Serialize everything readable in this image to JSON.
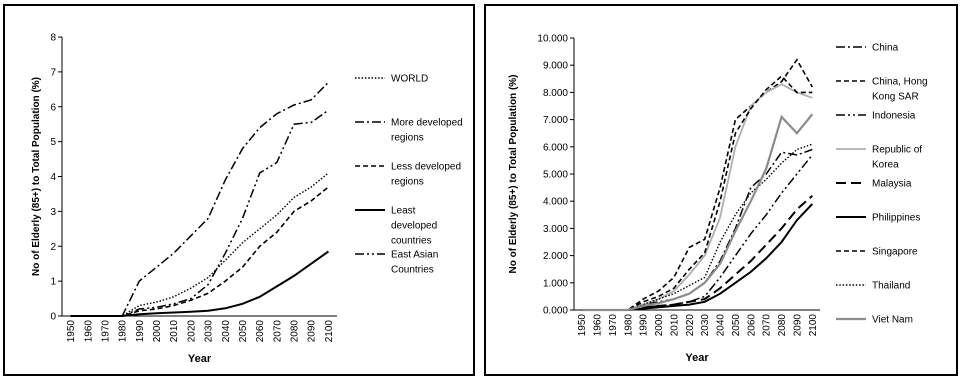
{
  "chart_data": [
    {
      "type": "line",
      "xlabel": "Year",
      "ylabel": "No of Elderly (85+) to Total Population (%)",
      "x": [
        1950,
        1960,
        1970,
        1980,
        1990,
        2000,
        2010,
        2020,
        2030,
        2040,
        2050,
        2060,
        2070,
        2080,
        2090,
        2100
      ],
      "ylim": [
        0,
        8
      ],
      "yticks": [
        "0",
        "1",
        "2",
        "3",
        "4",
        "5",
        "6",
        "7",
        "8"
      ],
      "legend_position": "right",
      "series": [
        {
          "name": "WORLD",
          "dash": "dotted",
          "values": [
            0,
            0,
            0,
            0,
            0.3,
            0.4,
            0.55,
            0.8,
            1.1,
            1.6,
            2.1,
            2.5,
            2.9,
            3.4,
            3.7,
            4.1
          ]
        },
        {
          "name": "More developed regions",
          "dash": "dashdot",
          "values": [
            0,
            0,
            0,
            0,
            1.0,
            1.4,
            1.8,
            2.3,
            2.8,
            3.9,
            4.8,
            5.4,
            5.8,
            6.05,
            6.2,
            6.7
          ]
        },
        {
          "name": "Less developed regions",
          "dash": "dashed",
          "values": [
            0,
            0,
            0,
            0,
            0.15,
            0.2,
            0.3,
            0.45,
            0.65,
            1.0,
            1.4,
            2.0,
            2.4,
            3.0,
            3.3,
            3.7
          ]
        },
        {
          "name": "Least developed countries",
          "dash": "solid",
          "values": [
            0,
            0,
            0,
            0,
            0.05,
            0.08,
            0.1,
            0.12,
            0.15,
            0.22,
            0.35,
            0.55,
            0.85,
            1.15,
            1.5,
            1.85
          ]
        },
        {
          "name": "East Asian Countries",
          "dash": "dashdotdot",
          "values": [
            0,
            0,
            0,
            0,
            0.2,
            0.25,
            0.35,
            0.5,
            0.9,
            1.8,
            2.8,
            4.1,
            4.4,
            5.5,
            5.55,
            5.9
          ]
        }
      ]
    },
    {
      "type": "line",
      "xlabel": "Year",
      "ylabel": "No of Elderly (85+) to Total Population (%)",
      "x": [
        1950,
        1960,
        1970,
        1980,
        1990,
        2000,
        2010,
        2020,
        2030,
        2040,
        2050,
        2060,
        2070,
        2080,
        2090,
        2100
      ],
      "ylim": [
        0,
        10
      ],
      "yticks": [
        "0.000",
        "1.000",
        "2.000",
        "3.000",
        "4.000",
        "5.000",
        "6.000",
        "7.000",
        "8.000",
        "9.000",
        "10.000"
      ],
      "legend_position": "right",
      "series": [
        {
          "name": "China",
          "dash": "dashdot",
          "values": [
            0,
            0,
            0,
            0,
            0.2,
            0.3,
            0.4,
            0.6,
            1.0,
            1.8,
            3.0,
            4.5,
            5.0,
            5.8,
            5.7,
            5.9
          ]
        },
        {
          "name": "China, Hong Kong SAR",
          "dash": "dashed",
          "values": [
            0,
            0,
            0,
            0,
            0.4,
            0.7,
            1.2,
            2.3,
            2.6,
            4.5,
            7.0,
            7.5,
            8.0,
            8.4,
            9.2,
            8.2
          ]
        },
        {
          "name": "Indonesia",
          "dash": "dashdotdot",
          "values": [
            0,
            0,
            0,
            0,
            0.1,
            0.15,
            0.2,
            0.3,
            0.5,
            1.2,
            2.0,
            2.8,
            3.5,
            4.3,
            5.0,
            5.7
          ]
        },
        {
          "name": "Republic of Korea",
          "dash": "solid-light",
          "values": [
            0,
            0,
            0,
            0,
            0.2,
            0.4,
            0.7,
            1.3,
            2.0,
            3.4,
            6.0,
            7.5,
            8.0,
            8.3,
            8.0,
            7.8
          ]
        },
        {
          "name": "Malaysia",
          "dash": "longdash",
          "values": [
            0,
            0,
            0,
            0,
            0.1,
            0.15,
            0.2,
            0.3,
            0.4,
            0.8,
            1.3,
            1.8,
            2.4,
            3.0,
            3.7,
            4.2
          ]
        },
        {
          "name": "Philippines",
          "dash": "solid",
          "values": [
            0,
            0,
            0,
            0,
            0.05,
            0.1,
            0.15,
            0.2,
            0.3,
            0.6,
            1.0,
            1.4,
            1.9,
            2.5,
            3.3,
            3.9
          ]
        },
        {
          "name": "Singapore",
          "dash": "dashed",
          "values": [
            0,
            0,
            0,
            0,
            0.3,
            0.5,
            0.8,
            1.5,
            2.1,
            4.0,
            6.5,
            7.4,
            8.1,
            8.6,
            8.0,
            8.0
          ]
        },
        {
          "name": "Thailand",
          "dash": "dotted",
          "values": [
            0,
            0,
            0,
            0,
            0.2,
            0.4,
            0.6,
            0.9,
            1.2,
            2.5,
            3.5,
            4.3,
            4.8,
            5.4,
            5.9,
            6.1
          ]
        },
        {
          "name": "Viet Nam",
          "dash": "solid-gray",
          "values": [
            0,
            0,
            0,
            0,
            0.15,
            0.25,
            0.4,
            0.6,
            1.0,
            1.7,
            2.9,
            4.0,
            5.2,
            7.1,
            6.5,
            7.2
          ]
        }
      ]
    }
  ]
}
